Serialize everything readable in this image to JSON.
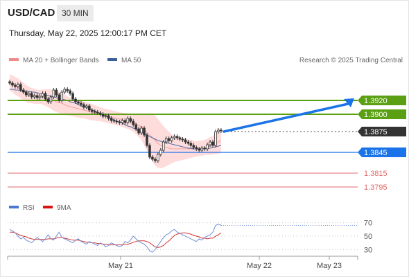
{
  "header": {
    "symbol": "USD/CAD",
    "timeframe": "30 MIN",
    "timestamp": "Thursday, May 22, 2025 12:00:17 PM CET",
    "credit": "Research © 2025 Trading Central"
  },
  "legend": {
    "ma20": "MA 20 + Bollinger Bands",
    "ma50": "MA 50",
    "rsi": "RSI",
    "ma9": "9MA"
  },
  "colors": {
    "green": "#5aa012",
    "blue": "#1a73e8",
    "red": "#e06868",
    "dark": "#333333",
    "band": "#ffd6d6",
    "rsi_line": "#6f8fd6",
    "ma9_line": "#d23030",
    "ma50_line": "#4e6aa0"
  },
  "chart_data": [
    {
      "type": "candlestick",
      "ylim": [
        1.3785,
        1.3965
      ],
      "levels": [
        {
          "label": "1.3920",
          "value": 1.392,
          "style": "resistance"
        },
        {
          "label": "1.3900",
          "value": 1.39,
          "style": "resistance"
        },
        {
          "label": "1.3875",
          "value": 1.3875,
          "style": "current"
        },
        {
          "label": "1.3845",
          "value": 1.3845,
          "style": "pivot"
        },
        {
          "label": "1.3815",
          "value": 1.3815,
          "style": "support"
        },
        {
          "label": "1.3795",
          "value": 1.3795,
          "style": "support"
        }
      ],
      "x_labels": [
        "May 21",
        "May 22",
        "May 23"
      ],
      "closes": [
        1.3945,
        1.3942,
        1.394,
        1.3943,
        1.3935,
        1.3932,
        1.3928,
        1.393,
        1.3925,
        1.3927,
        1.3924,
        1.3926,
        1.393,
        1.3922,
        1.3918,
        1.3925,
        1.3935,
        1.3928,
        1.392,
        1.3932,
        1.3936,
        1.3934,
        1.393,
        1.3922,
        1.3918,
        1.3916,
        1.3914,
        1.391,
        1.3912,
        1.3906,
        1.3904,
        1.3903,
        1.3902,
        1.39,
        1.3897,
        1.3898,
        1.3894,
        1.3891,
        1.389,
        1.3889,
        1.3888,
        1.3891,
        1.3888,
        1.3894,
        1.389,
        1.3885,
        1.3879,
        1.3873,
        1.388,
        1.387,
        1.3855,
        1.3838,
        1.3835,
        1.3833,
        1.3842,
        1.3848,
        1.386,
        1.3865,
        1.3862,
        1.3866,
        1.3868,
        1.3866,
        1.3864,
        1.3863,
        1.386,
        1.3858,
        1.3855,
        1.3852,
        1.385,
        1.3848,
        1.3851,
        1.385,
        1.3856,
        1.386,
        1.3855,
        1.3875,
        1.3877,
        1.3876
      ],
      "ma20": [
        1.3946,
        1.3944,
        1.3941,
        1.3939,
        1.3936,
        1.3933,
        1.393,
        1.3928,
        1.3927,
        1.3926,
        1.3925,
        1.3925,
        1.3925,
        1.3924,
        1.3923,
        1.3922,
        1.392,
        1.3918,
        1.3917,
        1.3916,
        1.3914,
        1.3912,
        1.3911,
        1.391,
        1.3909,
        1.3908,
        1.3907,
        1.3906,
        1.3905,
        1.3904,
        1.3903,
        1.3902,
        1.3901,
        1.39,
        1.3899,
        1.3898,
        1.3897,
        1.3896,
        1.3895,
        1.3894,
        1.3893,
        1.3892,
        1.3891,
        1.389,
        1.3889,
        1.3888,
        1.3886,
        1.3884,
        1.3882,
        1.3878,
        1.3874,
        1.387,
        1.3866,
        1.3862,
        1.3858,
        1.3855,
        1.3853,
        1.3852,
        1.3851,
        1.385,
        1.385,
        1.385,
        1.385,
        1.385,
        1.385,
        1.385,
        1.385,
        1.385,
        1.385,
        1.3851,
        1.3851,
        1.3852,
        1.3853,
        1.3854,
        1.3855,
        1.3857,
        1.386,
        1.3862
      ],
      "ma50": [
        1.3936,
        1.3936,
        1.3935,
        1.3935,
        1.3934,
        1.3934,
        1.3933,
        1.3933,
        1.3932,
        1.3932,
        1.3931,
        1.393,
        1.3929,
        1.3928,
        1.3927,
        1.3926,
        1.3925,
        1.3924,
        1.3923,
        1.3922,
        1.3921,
        1.392,
        1.3918,
        1.3917,
        1.3916,
        1.3914,
        1.3912,
        1.3911,
        1.391,
        1.3908,
        1.3906,
        1.3905,
        1.3903,
        1.3901,
        1.3899,
        1.3897,
        1.3896,
        1.3894,
        1.3892,
        1.389,
        1.3889,
        1.3887,
        1.3885,
        1.3883,
        1.3882,
        1.388,
        1.3878,
        1.3876,
        1.3874,
        1.3872,
        1.387,
        1.3868,
        1.3866,
        1.3864,
        1.3862,
        1.3861,
        1.386,
        1.3859,
        1.3858,
        1.3857,
        1.3856,
        1.3855,
        1.3854,
        1.3853,
        1.3852,
        1.3851,
        1.3851,
        1.385,
        1.385,
        1.385,
        1.385,
        1.385,
        1.3851,
        1.3851,
        1.3852,
        1.3853,
        1.3854,
        1.3855
      ],
      "bb_width": [
        0.0012,
        0.0012,
        0.0013,
        0.0013,
        0.0013,
        0.0013,
        0.0012,
        0.0012,
        0.0011,
        0.0011,
        0.001,
        0.001,
        0.0011,
        0.0012,
        0.0013,
        0.0014,
        0.0015,
        0.0015,
        0.0015,
        0.0015,
        0.0015,
        0.0014,
        0.0013,
        0.0013,
        0.0013,
        0.0013,
        0.0013,
        0.0012,
        0.0012,
        0.0012,
        0.0012,
        0.0011,
        0.0011,
        0.001,
        0.001,
        0.001,
        0.001,
        0.001,
        0.001,
        0.001,
        0.001,
        0.001,
        0.0011,
        0.0011,
        0.0012,
        0.0013,
        0.0015,
        0.0017,
        0.0019,
        0.0023,
        0.0027,
        0.0031,
        0.0034,
        0.0036,
        0.0035,
        0.0033,
        0.003,
        0.0027,
        0.0024,
        0.0021,
        0.0019,
        0.0018,
        0.0017,
        0.0016,
        0.0015,
        0.0014,
        0.0013,
        0.0012,
        0.0011,
        0.0011,
        0.0011,
        0.0011,
        0.0012,
        0.0013,
        0.0013,
        0.0015,
        0.0017,
        0.0018
      ]
    },
    {
      "type": "line",
      "ylim": [
        20,
        80
      ],
      "y_ticks": [
        "70",
        "50",
        "30"
      ],
      "series": [
        {
          "name": "RSI",
          "values": [
            60,
            58,
            55,
            50,
            46,
            48,
            44,
            42,
            40,
            44,
            48,
            45,
            42,
            46,
            52,
            46,
            44,
            50,
            56,
            48,
            46,
            44,
            42,
            40,
            44,
            46,
            42,
            40,
            38,
            42,
            40,
            38,
            36,
            40,
            38,
            34,
            36,
            40,
            38,
            36,
            34,
            36,
            42,
            40,
            44,
            50,
            46,
            42,
            40,
            38,
            34,
            28,
            26,
            30,
            36,
            42,
            48,
            52,
            54,
            58,
            60,
            56,
            54,
            52,
            50,
            48,
            46,
            44,
            42,
            46,
            44,
            48,
            50,
            52,
            56,
            66,
            68,
            66
          ]
        },
        {
          "name": "9MA",
          "values": [
            56,
            56,
            55,
            53,
            51,
            50,
            49,
            47,
            46,
            45,
            45,
            45,
            45,
            45,
            46,
            46,
            46,
            47,
            48,
            48,
            47,
            46,
            45,
            44,
            44,
            44,
            43,
            42,
            41,
            41,
            40,
            40,
            39,
            39,
            38,
            38,
            37,
            37,
            37,
            37,
            37,
            37,
            38,
            38,
            39,
            41,
            42,
            43,
            43,
            43,
            42,
            40,
            37,
            34,
            33,
            34,
            36,
            40,
            43,
            47,
            51,
            53,
            54,
            55,
            55,
            54,
            53,
            51,
            50,
            49,
            47,
            47,
            46,
            47,
            47,
            50,
            52,
            55
          ]
        }
      ]
    }
  ]
}
